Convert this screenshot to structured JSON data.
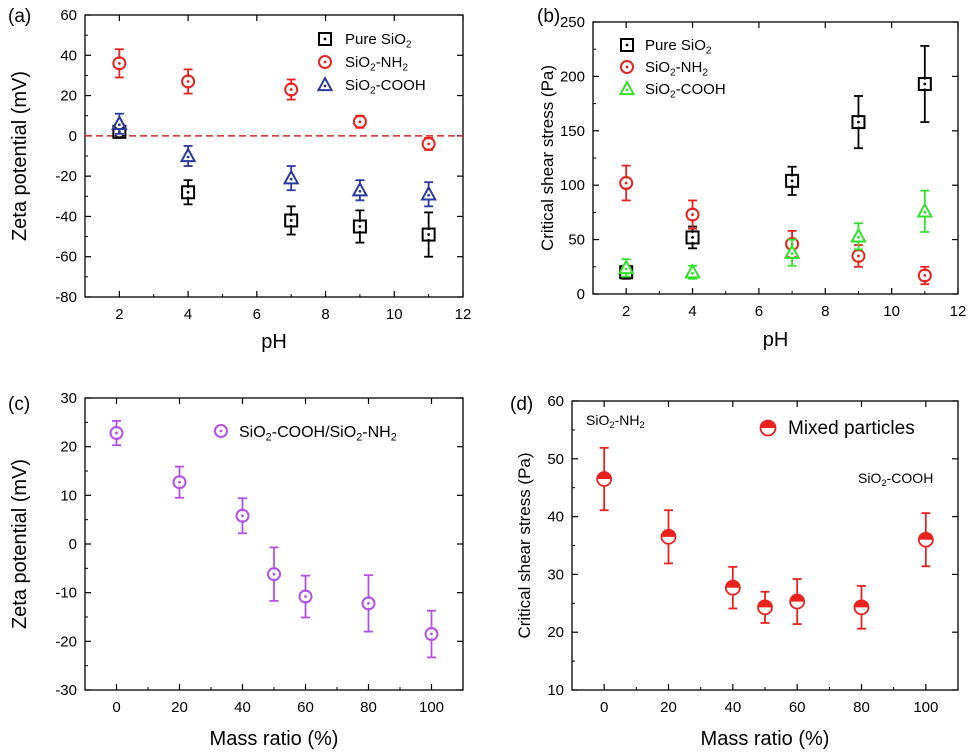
{
  "chart_data": [
    {
      "panel_label": "(a)",
      "type": "scatter",
      "xlabel": "pH",
      "ylabel": "Zeta potential (mV)",
      "xlim": [
        1,
        12
      ],
      "ylim": [
        -80,
        60
      ],
      "xticks": [
        2,
        4,
        6,
        8,
        10,
        12
      ],
      "yticks": [
        -80,
        -60,
        -40,
        -20,
        0,
        20,
        40,
        60
      ],
      "xtick_labels": [
        "2",
        "4",
        "6",
        "8",
        "10",
        "12"
      ],
      "ytick_labels": [
        "-80",
        "-60",
        "-40",
        "-20",
        "0",
        "20",
        "40",
        "60"
      ],
      "reference_line": {
        "y": 0,
        "color": "#d62728",
        "style": "dashed"
      },
      "legend_position": "top-right",
      "series": [
        {
          "name": "Pure SiO",
          "sub": "2",
          "suffix": "",
          "marker": "square",
          "color": "#000000",
          "x": [
            2,
            4,
            7,
            9,
            11
          ],
          "y": [
            2,
            -28,
            -42,
            -45,
            -49
          ],
          "err": [
            2,
            6,
            7,
            8,
            11
          ]
        },
        {
          "name": "SiO",
          "sub": "2",
          "suffix": "-NH",
          "sub2": "2",
          "marker": "circle",
          "color": "#e8231e",
          "x": [
            2,
            4,
            7,
            9,
            11
          ],
          "y": [
            36,
            27,
            23,
            7,
            -4
          ],
          "err": [
            7,
            6,
            5,
            3,
            3
          ]
        },
        {
          "name": "SiO",
          "sub": "2",
          "suffix": "-COOH",
          "marker": "triangle",
          "color": "#2b3a9e",
          "x": [
            2,
            4,
            7,
            9,
            11
          ],
          "y": [
            6,
            -10,
            -21,
            -27,
            -29
          ],
          "err": [
            5,
            5,
            6,
            5,
            6
          ]
        }
      ]
    },
    {
      "panel_label": "(b)",
      "type": "scatter",
      "xlabel": "pH",
      "ylabel": "Critical shear stress (Pa)",
      "xlim": [
        1,
        12
      ],
      "ylim": [
        0,
        250
      ],
      "xticks": [
        2,
        4,
        6,
        8,
        10,
        12
      ],
      "yticks": [
        0,
        50,
        100,
        150,
        200,
        250
      ],
      "xtick_labels": [
        "2",
        "4",
        "6",
        "8",
        "10",
        "12"
      ],
      "ytick_labels": [
        "0",
        "50",
        "100",
        "150",
        "200",
        "250"
      ],
      "legend_position": "top-left",
      "series": [
        {
          "name": "Pure SiO",
          "sub": "2",
          "suffix": "",
          "marker": "square",
          "color": "#000000",
          "x": [
            2,
            4,
            7,
            9,
            11
          ],
          "y": [
            20,
            52,
            104,
            158,
            193
          ],
          "err": [
            6,
            10,
            13,
            24,
            35
          ]
        },
        {
          "name": "SiO",
          "sub": "2",
          "suffix": "-NH",
          "sub2": "2",
          "marker": "circle",
          "color": "#e8231e",
          "x": [
            2,
            4,
            7,
            9,
            11
          ],
          "y": [
            102,
            73,
            46,
            35,
            17
          ],
          "err": [
            16,
            13,
            12,
            10,
            8
          ]
        },
        {
          "name": "SiO",
          "sub": "2",
          "suffix": "-COOH",
          "marker": "triangle",
          "color": "#33e02a",
          "x": [
            2,
            4,
            7,
            9,
            11
          ],
          "y": [
            24,
            20,
            38,
            53,
            76
          ],
          "err": [
            8,
            6,
            12,
            12,
            19
          ]
        }
      ]
    },
    {
      "panel_label": "(c)",
      "type": "scatter",
      "xlabel": "Mass ratio (%)",
      "ylabel": "Zeta potential (mV)",
      "xlim": [
        -10,
        110
      ],
      "ylim": [
        -30,
        30
      ],
      "xticks": [
        0,
        20,
        40,
        60,
        80,
        100
      ],
      "yticks": [
        -30,
        -20,
        -10,
        0,
        10,
        20,
        30
      ],
      "xtick_labels": [
        "0",
        "20",
        "40",
        "60",
        "80",
        "100"
      ],
      "ytick_labels": [
        "-30",
        "-20",
        "-10",
        "0",
        "10",
        "20",
        "30"
      ],
      "legend_position": "top-right",
      "series": [
        {
          "name": "SiO",
          "sub": "2",
          "suffix": "-COOH/SiO",
          "sub2": "2",
          "suffix2": "-NH",
          "sub3": "2",
          "marker": "circle",
          "color": "#b350e8",
          "x": [
            0,
            20,
            40,
            50,
            60,
            80,
            100
          ],
          "y": [
            22.8,
            12.7,
            5.8,
            -6.2,
            -10.8,
            -12.2,
            -18.5
          ],
          "err": [
            2.5,
            3.2,
            3.6,
            5.5,
            4.3,
            5.8,
            4.8
          ]
        }
      ]
    },
    {
      "panel_label": "(d)",
      "type": "scatter",
      "xlabel": "Mass ratio (%)",
      "ylabel": "Critical shear stress (Pa)",
      "xlim": [
        -10,
        110
      ],
      "ylim": [
        10,
        60
      ],
      "xticks": [
        0,
        20,
        40,
        60,
        80,
        100
      ],
      "yticks": [
        10,
        20,
        30,
        40,
        50,
        60
      ],
      "xtick_labels": [
        "0",
        "20",
        "40",
        "60",
        "80",
        "100"
      ],
      "ytick_labels": [
        "10",
        "20",
        "30",
        "40",
        "50",
        "60"
      ],
      "legend_position": "top-right",
      "annotations": {
        "left": {
          "text": "SiO",
          "sub": "2",
          "suffix": "-NH",
          "sub2": "2"
        },
        "right": {
          "text": "SiO",
          "sub": "2",
          "suffix": "-COOH"
        }
      },
      "series": [
        {
          "name": "Mixed particles",
          "marker": "half-filled-circle",
          "color": "#e8231e",
          "x": [
            0,
            20,
            40,
            50,
            60,
            80,
            100
          ],
          "y": [
            46.5,
            36.5,
            27.7,
            24.3,
            25.3,
            24.3,
            36.0
          ],
          "err": [
            5.4,
            4.6,
            3.6,
            2.7,
            3.9,
            3.7,
            4.6
          ]
        }
      ]
    }
  ]
}
